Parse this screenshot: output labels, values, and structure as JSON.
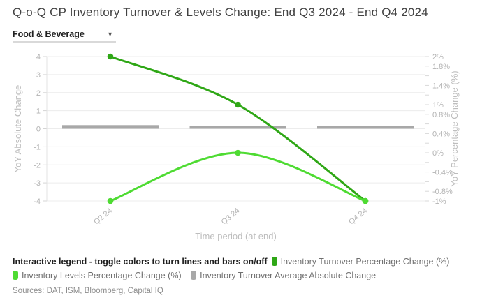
{
  "header": {
    "title": "Q-o-Q CP Inventory Turnover & Levels Change: End Q3 2024 - End Q4 2024",
    "filter": {
      "value": "Food & Beverage"
    }
  },
  "chart_data": {
    "type": "line",
    "categories": [
      "Q2 24",
      "Q3 24",
      "Q4 24"
    ],
    "series": [
      {
        "name": "Inventory Turnover Percentage Change (%)",
        "type": "line",
        "axis": "right",
        "color": "#2fa716",
        "values": [
          2,
          1,
          -1
        ]
      },
      {
        "name": "Inventory Levels Percentage Change (%)",
        "type": "line",
        "axis": "right",
        "color": "#4edb32",
        "values": [
          -1,
          0,
          -1
        ]
      },
      {
        "name": "Inventory Turnover Average Absolute Change",
        "type": "bar",
        "axis": "left",
        "color": "#a8a8a8",
        "values": [
          0.2,
          0.15,
          0.15
        ]
      }
    ],
    "x_axis": {
      "label": "Time period (at end)"
    },
    "left_axis": {
      "label": "YoY Absolute Change",
      "min": -4,
      "max": 4,
      "tick_step": 1
    },
    "right_axis": {
      "label": "YoY Percentage Change (%)",
      "min": -1,
      "max": 2,
      "minor_tick_step": 0.2,
      "labeled_ticks": [
        {
          "value": 2,
          "text": "2%"
        },
        {
          "value": 1.8,
          "text": "1.8%"
        },
        {
          "value": 1.4,
          "text": "1.4%"
        },
        {
          "value": 1,
          "text": "1%"
        },
        {
          "value": 0.8,
          "text": "0.8%"
        },
        {
          "value": 0.4,
          "text": "0.4%"
        },
        {
          "value": 0,
          "text": "0%"
        },
        {
          "value": -0.4,
          "text": "-0.4%"
        },
        {
          "value": -0.8,
          "text": "-0.8%"
        },
        {
          "value": -1,
          "text": "-1%"
        }
      ]
    },
    "grid": true,
    "legend_position": "bottom"
  },
  "legend": {
    "intro": "Interactive legend - toggle colors to turn lines and bars on/off",
    "items": [
      {
        "label": "Inventory Turnover Percentage Change (%)",
        "color": "#2fa716"
      },
      {
        "label": "Inventory Levels Percentage Change (%)",
        "color": "#4edb32"
      },
      {
        "label": "Inventory Turnover Average Absolute Change",
        "color": "#a8a8a8"
      }
    ]
  },
  "footer": {
    "sources": "Sources: DAT, ISM, Bloomberg, Capital IQ"
  }
}
